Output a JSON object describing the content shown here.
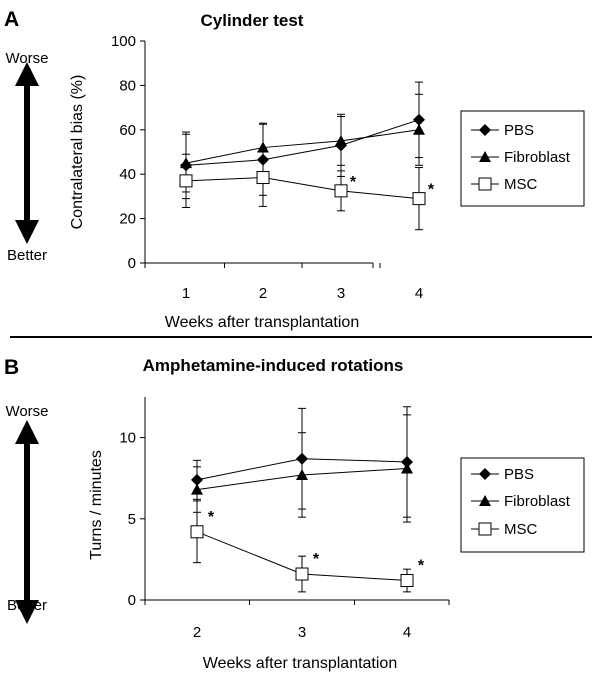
{
  "chart_data": [
    {
      "panel": "A",
      "type": "line",
      "title": "Cylinder test",
      "xlabel": "Weeks after transplantation",
      "ylabel": "Contralateral bias (%)",
      "categories": [
        "1",
        "2",
        "3",
        "4"
      ],
      "ylim": [
        0,
        100
      ],
      "yticks": [
        0,
        20,
        40,
        60,
        80,
        100
      ],
      "series": [
        {
          "name": "PBS",
          "marker": "diamond",
          "values": [
            44,
            46.5,
            53,
            64.5
          ],
          "err": [
            15,
            16,
            14,
            17
          ]
        },
        {
          "name": "Fibroblast",
          "marker": "triangle",
          "values": [
            45,
            52,
            55,
            60
          ],
          "err": [
            13,
            11,
            11,
            16
          ]
        },
        {
          "name": "MSC",
          "marker": "open-square",
          "values": [
            37,
            38.5,
            32.5,
            29
          ],
          "err": [
            12,
            13,
            9,
            14
          ]
        }
      ],
      "significance": [
        {
          "series": "MSC",
          "category": "3",
          "label": "*"
        },
        {
          "series": "MSC",
          "category": "4",
          "label": "*"
        }
      ],
      "side_scale": {
        "top": "Worse",
        "bottom": "Better"
      }
    },
    {
      "panel": "B",
      "type": "line",
      "title": "Amphetamine-induced rotations",
      "xlabel": "Weeks after transplantation",
      "ylabel": "Turns / minutes",
      "categories": [
        "2",
        "3",
        "4"
      ],
      "ylim": [
        0,
        12.5
      ],
      "yticks": [
        0,
        5,
        10
      ],
      "series": [
        {
          "name": "PBS",
          "marker": "diamond",
          "values": [
            7.4,
            8.7,
            8.5
          ],
          "err": [
            1.2,
            3.1,
            3.4
          ]
        },
        {
          "name": "Fibroblast",
          "marker": "triangle",
          "values": [
            6.8,
            7.7,
            8.1
          ],
          "err": [
            1.4,
            2.6,
            3.3
          ]
        },
        {
          "name": "MSC",
          "marker": "open-square",
          "values": [
            4.2,
            1.6,
            1.2
          ],
          "err": [
            1.9,
            1.1,
            0.7
          ]
        }
      ],
      "significance": [
        {
          "series": "MSC",
          "category": "2",
          "label": "*"
        },
        {
          "series": "MSC",
          "category": "3",
          "label": "*"
        },
        {
          "series": "MSC",
          "category": "4",
          "label": "*"
        }
      ],
      "side_scale": {
        "top": "Worse",
        "bottom": "Better"
      }
    }
  ]
}
